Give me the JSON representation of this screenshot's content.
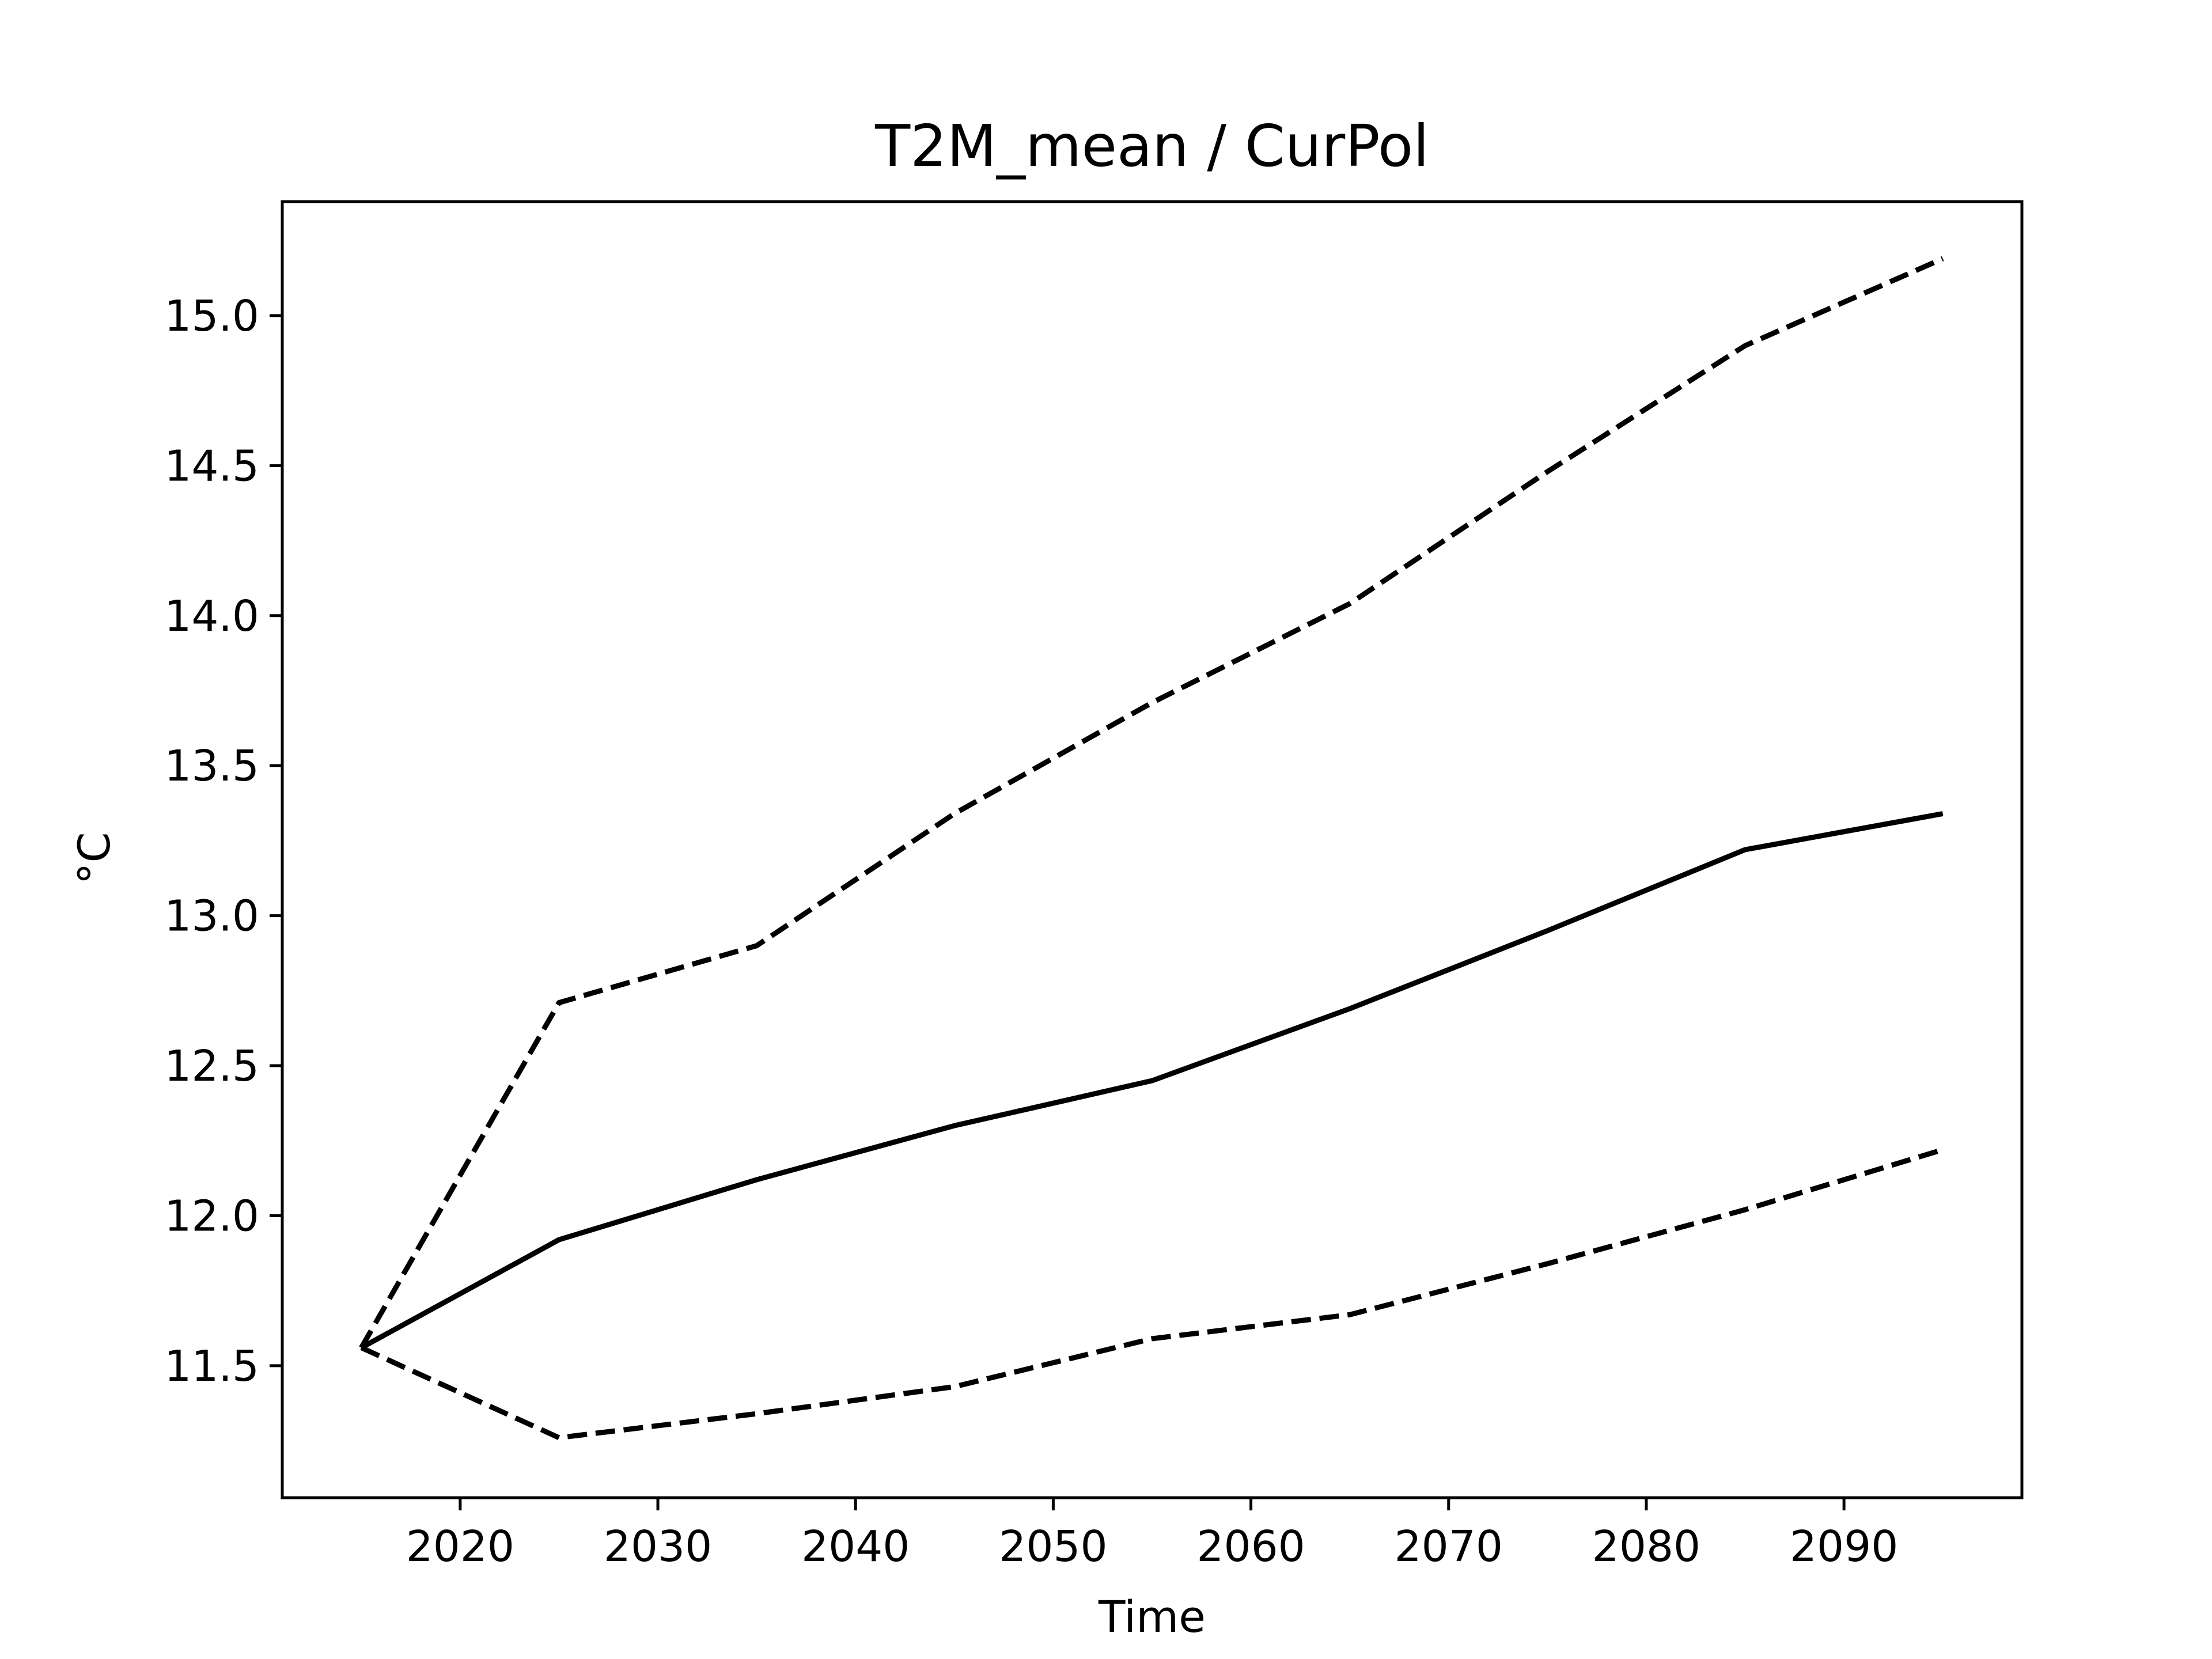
{
  "chart_data": {
    "type": "line",
    "title": "T2M_mean / CurPol",
    "xlabel": "Time",
    "ylabel": "°C",
    "xlim": [
      2011,
      2099
    ],
    "ylim": [
      11.06,
      15.38
    ],
    "x_ticks": [
      2020,
      2030,
      2040,
      2050,
      2060,
      2070,
      2080,
      2090
    ],
    "y_ticks": [
      11.5,
      12.0,
      12.5,
      13.0,
      13.5,
      14.0,
      14.5,
      15.0
    ],
    "x_tick_labels": [
      "2020",
      "2030",
      "2040",
      "2050",
      "2060",
      "2070",
      "2080",
      "2090"
    ],
    "y_tick_labels": [
      "11.5",
      "12.0",
      "12.5",
      "13.0",
      "13.5",
      "14.0",
      "14.5",
      "15.0"
    ],
    "grid": false,
    "x": [
      2015,
      2025,
      2035,
      2045,
      2055,
      2065,
      2075,
      2085,
      2095
    ],
    "series": [
      {
        "line_style": "solid",
        "color": "#000000",
        "values": [
          11.56,
          11.92,
          12.12,
          12.3,
          12.45,
          12.69,
          12.95,
          13.22,
          13.34
        ]
      },
      {
        "line_style": "dashed",
        "color": "#000000",
        "values": [
          11.56,
          12.71,
          12.9,
          13.34,
          13.71,
          14.04,
          14.48,
          14.9,
          15.19
        ]
      },
      {
        "line_style": "dashed",
        "color": "#000000",
        "values": [
          11.56,
          11.26,
          11.34,
          11.43,
          11.59,
          11.67,
          11.84,
          12.02,
          12.22
        ]
      }
    ]
  }
}
